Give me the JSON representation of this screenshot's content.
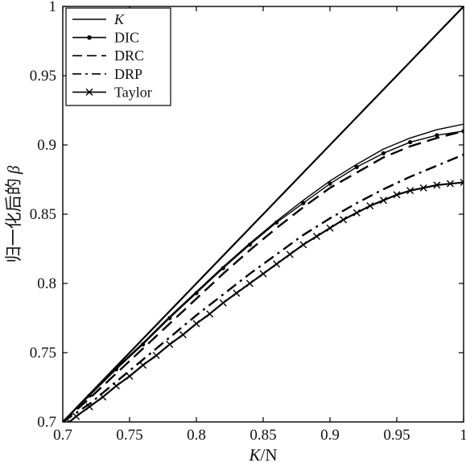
{
  "chart_data": {
    "type": "line",
    "title": "",
    "xlabel": "K/N",
    "ylabel": "归一化后的 β",
    "xlim": [
      0.7,
      1.0
    ],
    "ylim": [
      0.7,
      1.0
    ],
    "x_ticks": [
      "0.7",
      "0.75",
      "0.8",
      "0.85",
      "0.9",
      "0.95",
      "1"
    ],
    "y_ticks": [
      "0.7",
      "0.75",
      "0.8",
      "0.85",
      "0.9",
      "0.95",
      "1"
    ],
    "grid": false,
    "legend_position": "top-left",
    "legend": [
      "K",
      "DIC",
      "DRC",
      "DRP",
      "Taylor"
    ],
    "series": [
      {
        "name": "K",
        "style": "solid",
        "marker": "none",
        "x": [
          0.7,
          0.75,
          0.8,
          0.85,
          0.9,
          0.95,
          1.0
        ],
        "y": [
          0.7,
          0.75,
          0.8,
          0.85,
          0.9,
          0.95,
          1.0
        ]
      },
      {
        "name": "",
        "style": "solid-thin",
        "marker": "none",
        "x": [
          0.7,
          0.72,
          0.74,
          0.76,
          0.78,
          0.8,
          0.82,
          0.84,
          0.86,
          0.88,
          0.9,
          0.92,
          0.94,
          0.96,
          0.98,
          1.0
        ],
        "y": [
          0.7,
          0.72,
          0.739,
          0.757,
          0.776,
          0.794,
          0.812,
          0.829,
          0.845,
          0.86,
          0.874,
          0.886,
          0.897,
          0.905,
          0.911,
          0.915
        ]
      },
      {
        "name": "DIC",
        "style": "dotted-marker",
        "marker": "dot",
        "x": [
          0.7,
          0.72,
          0.74,
          0.76,
          0.78,
          0.8,
          0.82,
          0.84,
          0.86,
          0.88,
          0.9,
          0.92,
          0.94,
          0.96,
          0.98,
          1.0
        ],
        "y": [
          0.7,
          0.719,
          0.738,
          0.756,
          0.775,
          0.793,
          0.811,
          0.828,
          0.844,
          0.858,
          0.872,
          0.884,
          0.894,
          0.902,
          0.907,
          0.91
        ]
      },
      {
        "name": "DRC",
        "style": "dashed",
        "marker": "none",
        "x": [
          0.7,
          0.72,
          0.74,
          0.76,
          0.78,
          0.8,
          0.82,
          0.84,
          0.86,
          0.88,
          0.9,
          0.92,
          0.94,
          0.96,
          0.98,
          1.0
        ],
        "y": [
          0.7,
          0.717,
          0.735,
          0.753,
          0.771,
          0.789,
          0.807,
          0.824,
          0.84,
          0.855,
          0.869,
          0.88,
          0.891,
          0.899,
          0.905,
          0.91
        ]
      },
      {
        "name": "DRP",
        "style": "dash-dot",
        "marker": "none",
        "x": [
          0.7,
          0.72,
          0.74,
          0.76,
          0.78,
          0.8,
          0.82,
          0.84,
          0.86,
          0.88,
          0.9,
          0.92,
          0.94,
          0.96,
          0.98,
          1.0
        ],
        "y": [
          0.7,
          0.713,
          0.729,
          0.745,
          0.761,
          0.777,
          0.792,
          0.807,
          0.821,
          0.835,
          0.847,
          0.858,
          0.868,
          0.877,
          0.885,
          0.893
        ]
      },
      {
        "name": "Taylor",
        "style": "solid",
        "marker": "x",
        "x": [
          0.705,
          0.71,
          0.72,
          0.73,
          0.74,
          0.75,
          0.76,
          0.77,
          0.78,
          0.79,
          0.8,
          0.81,
          0.82,
          0.83,
          0.84,
          0.85,
          0.86,
          0.87,
          0.88,
          0.89,
          0.9,
          0.91,
          0.92,
          0.93,
          0.94,
          0.95,
          0.96,
          0.97,
          0.98,
          0.99,
          1.0
        ],
        "y": [
          0.7,
          0.704,
          0.711,
          0.718,
          0.726,
          0.733,
          0.741,
          0.748,
          0.756,
          0.763,
          0.771,
          0.778,
          0.786,
          0.793,
          0.8,
          0.807,
          0.814,
          0.821,
          0.828,
          0.834,
          0.84,
          0.846,
          0.851,
          0.856,
          0.86,
          0.864,
          0.867,
          0.869,
          0.871,
          0.872,
          0.873
        ]
      }
    ]
  }
}
